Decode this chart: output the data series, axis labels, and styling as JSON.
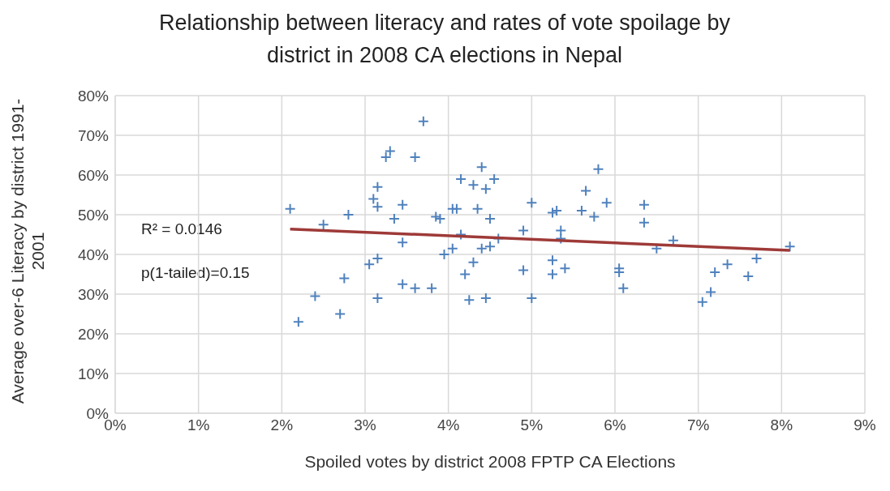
{
  "chart_data": {
    "type": "scatter",
    "title": "Relationship between literacy and rates of vote spoilage by district in 2008 CA elections in Nepal",
    "xlabel": "Spoiled votes by district 2008 FPTP CA Elections",
    "ylabel": "Average over-6  Literacy  by district 1991-2001",
    "xlim": [
      0,
      9
    ],
    "xticks": [
      {
        "value": 0,
        "label": "0%"
      },
      {
        "value": 1,
        "label": "1%"
      },
      {
        "value": 2,
        "label": "2%"
      },
      {
        "value": 3,
        "label": "3%"
      },
      {
        "value": 4,
        "label": "4%"
      },
      {
        "value": 5,
        "label": "5%"
      },
      {
        "value": 6,
        "label": "6%"
      },
      {
        "value": 7,
        "label": "7%"
      },
      {
        "value": 8,
        "label": "8%"
      },
      {
        "value": 9,
        "label": "9%"
      }
    ],
    "ylim": [
      0,
      80
    ],
    "yticks": [
      {
        "value": 0,
        "label": "0%"
      },
      {
        "value": 10,
        "label": "10%"
      },
      {
        "value": 20,
        "label": "20%"
      },
      {
        "value": 30,
        "label": "30%"
      },
      {
        "value": 40,
        "label": "40%"
      },
      {
        "value": 50,
        "label": "50%"
      },
      {
        "value": 60,
        "label": "60%"
      },
      {
        "value": 70,
        "label": "70%"
      },
      {
        "value": 80,
        "label": "80%"
      }
    ],
    "grid": true,
    "series": [
      {
        "marker": "cross",
        "color": "#4f81bd",
        "x": [
          2.1,
          2.2,
          2.4,
          2.5,
          2.7,
          2.75,
          2.8,
          3.05,
          3.1,
          3.15,
          3.15,
          3.15,
          3.15,
          3.25,
          3.3,
          3.35,
          3.45,
          3.45,
          3.45,
          3.6,
          3.6,
          3.7,
          3.8,
          3.85,
          3.9,
          3.95,
          4.05,
          4.05,
          4.1,
          4.15,
          4.15,
          4.2,
          4.25,
          4.3,
          4.3,
          4.35,
          4.4,
          4.4,
          4.45,
          4.45,
          4.5,
          4.5,
          4.55,
          4.6,
          4.9,
          4.9,
          5.0,
          5.0,
          5.25,
          5.3,
          5.25,
          5.25,
          5.35,
          5.35,
          5.4,
          5.6,
          5.65,
          5.75,
          5.8,
          5.9,
          6.05,
          6.05,
          6.1,
          6.35,
          6.35,
          6.5,
          6.7,
          7.05,
          7.15,
          7.2,
          7.35,
          7.6,
          7.7,
          8.1
        ],
        "values": [
          51.5,
          23,
          29.5,
          47.5,
          25,
          34,
          50,
          37.5,
          54,
          39,
          52,
          57,
          29,
          64.5,
          66,
          49,
          52.5,
          43,
          32.5,
          64.5,
          31.5,
          73.5,
          31.5,
          49.5,
          49,
          40,
          41.5,
          51.5,
          51.5,
          59,
          45,
          35,
          28.5,
          57.5,
          38,
          51.5,
          62,
          41.5,
          56.5,
          29,
          49,
          42,
          59,
          44,
          46,
          36,
          53,
          29,
          50.5,
          51,
          38.5,
          35,
          44,
          46,
          36.5,
          51,
          56,
          49.5,
          61.5,
          53,
          35.5,
          36.5,
          31.5,
          52.5,
          48,
          41.5,
          43.5,
          28,
          30.5,
          35.5,
          37.5,
          34.5,
          39,
          42
        ]
      },
      {
        "type": "line",
        "marker": "none",
        "color": "#9e3a38",
        "x": [
          2.1,
          8.1
        ],
        "values": [
          46.4,
          41
        ]
      }
    ],
    "annotations": [
      "R² = 0.0146",
      "p(1-tailed)=0.15"
    ]
  }
}
